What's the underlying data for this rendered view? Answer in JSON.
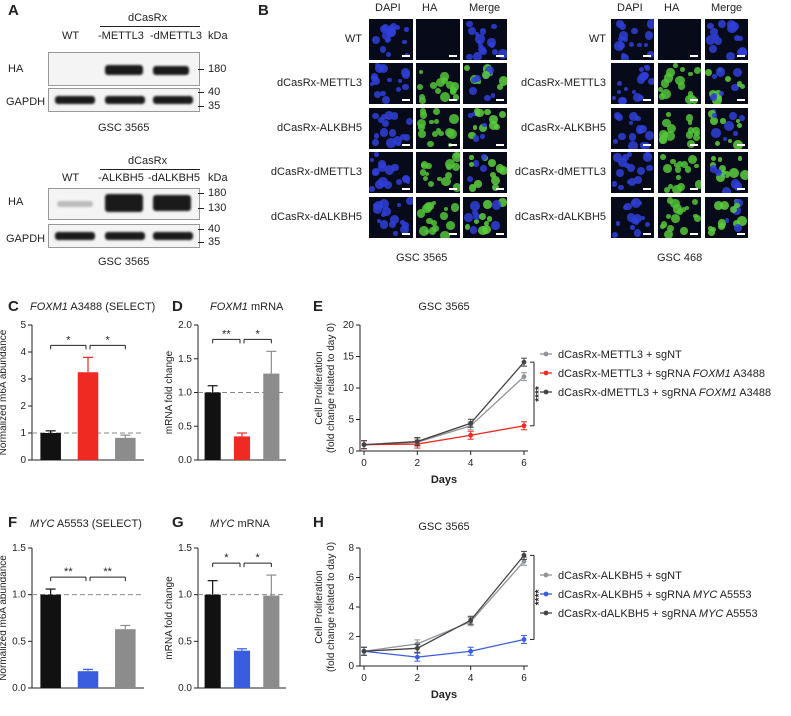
{
  "panelA": {
    "label": "A",
    "blot1": {
      "group": "dCasRx",
      "lanes": [
        "WT",
        "-METTL3",
        "-dMETTL3"
      ],
      "kda": "kDa",
      "rows": [
        "HA",
        "GAPDH"
      ],
      "markers": [
        "180",
        "40",
        "35"
      ],
      "caption": "GSC 3565"
    },
    "blot2": {
      "group": "dCasRx",
      "lanes": [
        "WT",
        "-ALKBH5",
        "-dALKBH5"
      ],
      "kda": "kDa",
      "rows": [
        "HA",
        "GAPDH"
      ],
      "markers": [
        "180",
        "130",
        "40",
        "35"
      ],
      "caption": "GSC 3565"
    }
  },
  "panelB": {
    "label": "B",
    "columns": [
      "DAPI",
      "HA",
      "Merge"
    ],
    "rows": [
      "WT",
      "dCasRx-METTL3",
      "dCasRx-ALKBH5",
      "dCasRx-dMETTL3",
      "dCasRx-dALKBH5"
    ],
    "captions": [
      "GSC 3565",
      "GSC 468"
    ]
  },
  "colors": {
    "black": "#111111",
    "red": "#ee2a22",
    "blue": "#3a5ddf",
    "gray": "#8c8c8c",
    "gsc_gray": "#8f9499",
    "dark": "#444444"
  },
  "chart_data": [
    {
      "panel": "C",
      "type": "bar",
      "title_italic": "FOXM1",
      "title_rest": " A3488 (SELECT)",
      "ylabel": "Normalized m6A abundance",
      "ylim": [
        0,
        5
      ],
      "yticks": [
        0,
        1,
        2,
        3,
        4,
        5
      ],
      "values": [
        1.0,
        3.25,
        0.82
      ],
      "errors": [
        0.08,
        0.55,
        0.1
      ],
      "colors": [
        "#111111",
        "#ee2a22",
        "#8c8c8c"
      ],
      "reference_line": 1,
      "significance": [
        {
          "from": 0,
          "to": 1,
          "label": "*"
        },
        {
          "from": 1,
          "to": 2,
          "label": "*"
        }
      ]
    },
    {
      "panel": "D",
      "type": "bar",
      "title_italic": "FOXM1",
      "title_rest": " mRNA",
      "ylabel": "mRNA fold change",
      "ylim": [
        0,
        2.0
      ],
      "yticks": [
        0,
        0.5,
        1.0,
        1.5,
        2.0
      ],
      "values": [
        1.0,
        0.35,
        1.28
      ],
      "errors": [
        0.1,
        0.05,
        0.33
      ],
      "colors": [
        "#111111",
        "#ee2a22",
        "#8c8c8c"
      ],
      "reference_line": 1,
      "significance": [
        {
          "from": 0,
          "to": 1,
          "label": "**"
        },
        {
          "from": 1,
          "to": 2,
          "label": "*"
        }
      ]
    },
    {
      "panel": "E",
      "type": "line",
      "title": "GSC 3565",
      "xlabel": "Days",
      "ylabel": "Cell Proliferation",
      "ylabel2": "(fold change related to day 0)",
      "xlim": [
        0,
        6
      ],
      "ylim": [
        0,
        20
      ],
      "xticks": [
        0,
        2,
        4,
        6
      ],
      "yticks": [
        0,
        5,
        10,
        15,
        20
      ],
      "x": [
        0,
        2,
        4,
        6
      ],
      "series": [
        {
          "name": "dCasRx-METTL3 + sgNT",
          "italic": "",
          "name_after": "",
          "values": [
            1,
            1.4,
            4.0,
            11.8
          ],
          "color": "#8f9499"
        },
        {
          "name": "dCasRx-METTL3 + sgRNA ",
          "italic": "FOXM1",
          "name_after": " A3488",
          "values": [
            1,
            1.1,
            2.5,
            4.0
          ],
          "color": "#ee2a22"
        },
        {
          "name": "dCasRx-dMETTL3 + sgRNA ",
          "italic": "FOXM1",
          "name_after": " A3488",
          "values": [
            1,
            1.5,
            4.4,
            14.1
          ],
          "color": "#444444"
        }
      ],
      "significance": "****"
    },
    {
      "panel": "F",
      "type": "bar",
      "title_italic": "MYC",
      "title_rest": " A5553 (SELECT)",
      "ylabel": "Normalized m6A abundance",
      "ylim": [
        0,
        1.5
      ],
      "yticks": [
        0,
        0.5,
        1.0,
        1.5
      ],
      "values": [
        1.0,
        0.18,
        0.63
      ],
      "errors": [
        0.06,
        0.02,
        0.04
      ],
      "colors": [
        "#111111",
        "#3a5ddf",
        "#8c8c8c"
      ],
      "reference_line": 1,
      "significance": [
        {
          "from": 0,
          "to": 1,
          "label": "**"
        },
        {
          "from": 1,
          "to": 2,
          "label": "**"
        }
      ]
    },
    {
      "panel": "G",
      "type": "bar",
      "title_italic": "MYC",
      "title_rest": " mRNA",
      "ylabel": "mRNA fold change",
      "ylim": [
        0,
        1.5
      ],
      "yticks": [
        0,
        0.5,
        1.0,
        1.5
      ],
      "values": [
        1.0,
        0.4,
        0.99
      ],
      "errors": [
        0.15,
        0.02,
        0.22
      ],
      "colors": [
        "#111111",
        "#3a5ddf",
        "#8c8c8c"
      ],
      "reference_line": 1,
      "significance": [
        {
          "from": 0,
          "to": 1,
          "label": "*"
        },
        {
          "from": 1,
          "to": 2,
          "label": "*"
        }
      ]
    },
    {
      "panel": "H",
      "type": "line",
      "title": "GSC 3565",
      "xlabel": "Days",
      "ylabel": "Cell Proliferation",
      "ylabel2": "(fold change related to day 0)",
      "xlim": [
        0,
        6
      ],
      "ylim": [
        0,
        8
      ],
      "xticks": [
        0,
        2,
        4,
        6
      ],
      "yticks": [
        0,
        2,
        4,
        6,
        8
      ],
      "x": [
        0,
        2,
        4,
        6
      ],
      "series": [
        {
          "name": "dCasRx-ALKBH5 + sgNT",
          "italic": "",
          "name_after": "",
          "values": [
            1,
            1.5,
            3.0,
            7.1
          ],
          "color": "#8f9499"
        },
        {
          "name": "dCasRx-ALKBH5 + sgRNA ",
          "italic": "MYC",
          "name_after": " A5553",
          "values": [
            1,
            0.6,
            1.0,
            1.8
          ],
          "color": "#3a5ddf"
        },
        {
          "name": "dCasRx-dALKBH5 + sgRNA ",
          "italic": "MYC",
          "name_after": " A5553",
          "values": [
            1,
            1.2,
            3.1,
            7.5
          ],
          "color": "#444444"
        }
      ],
      "significance": "****"
    }
  ]
}
